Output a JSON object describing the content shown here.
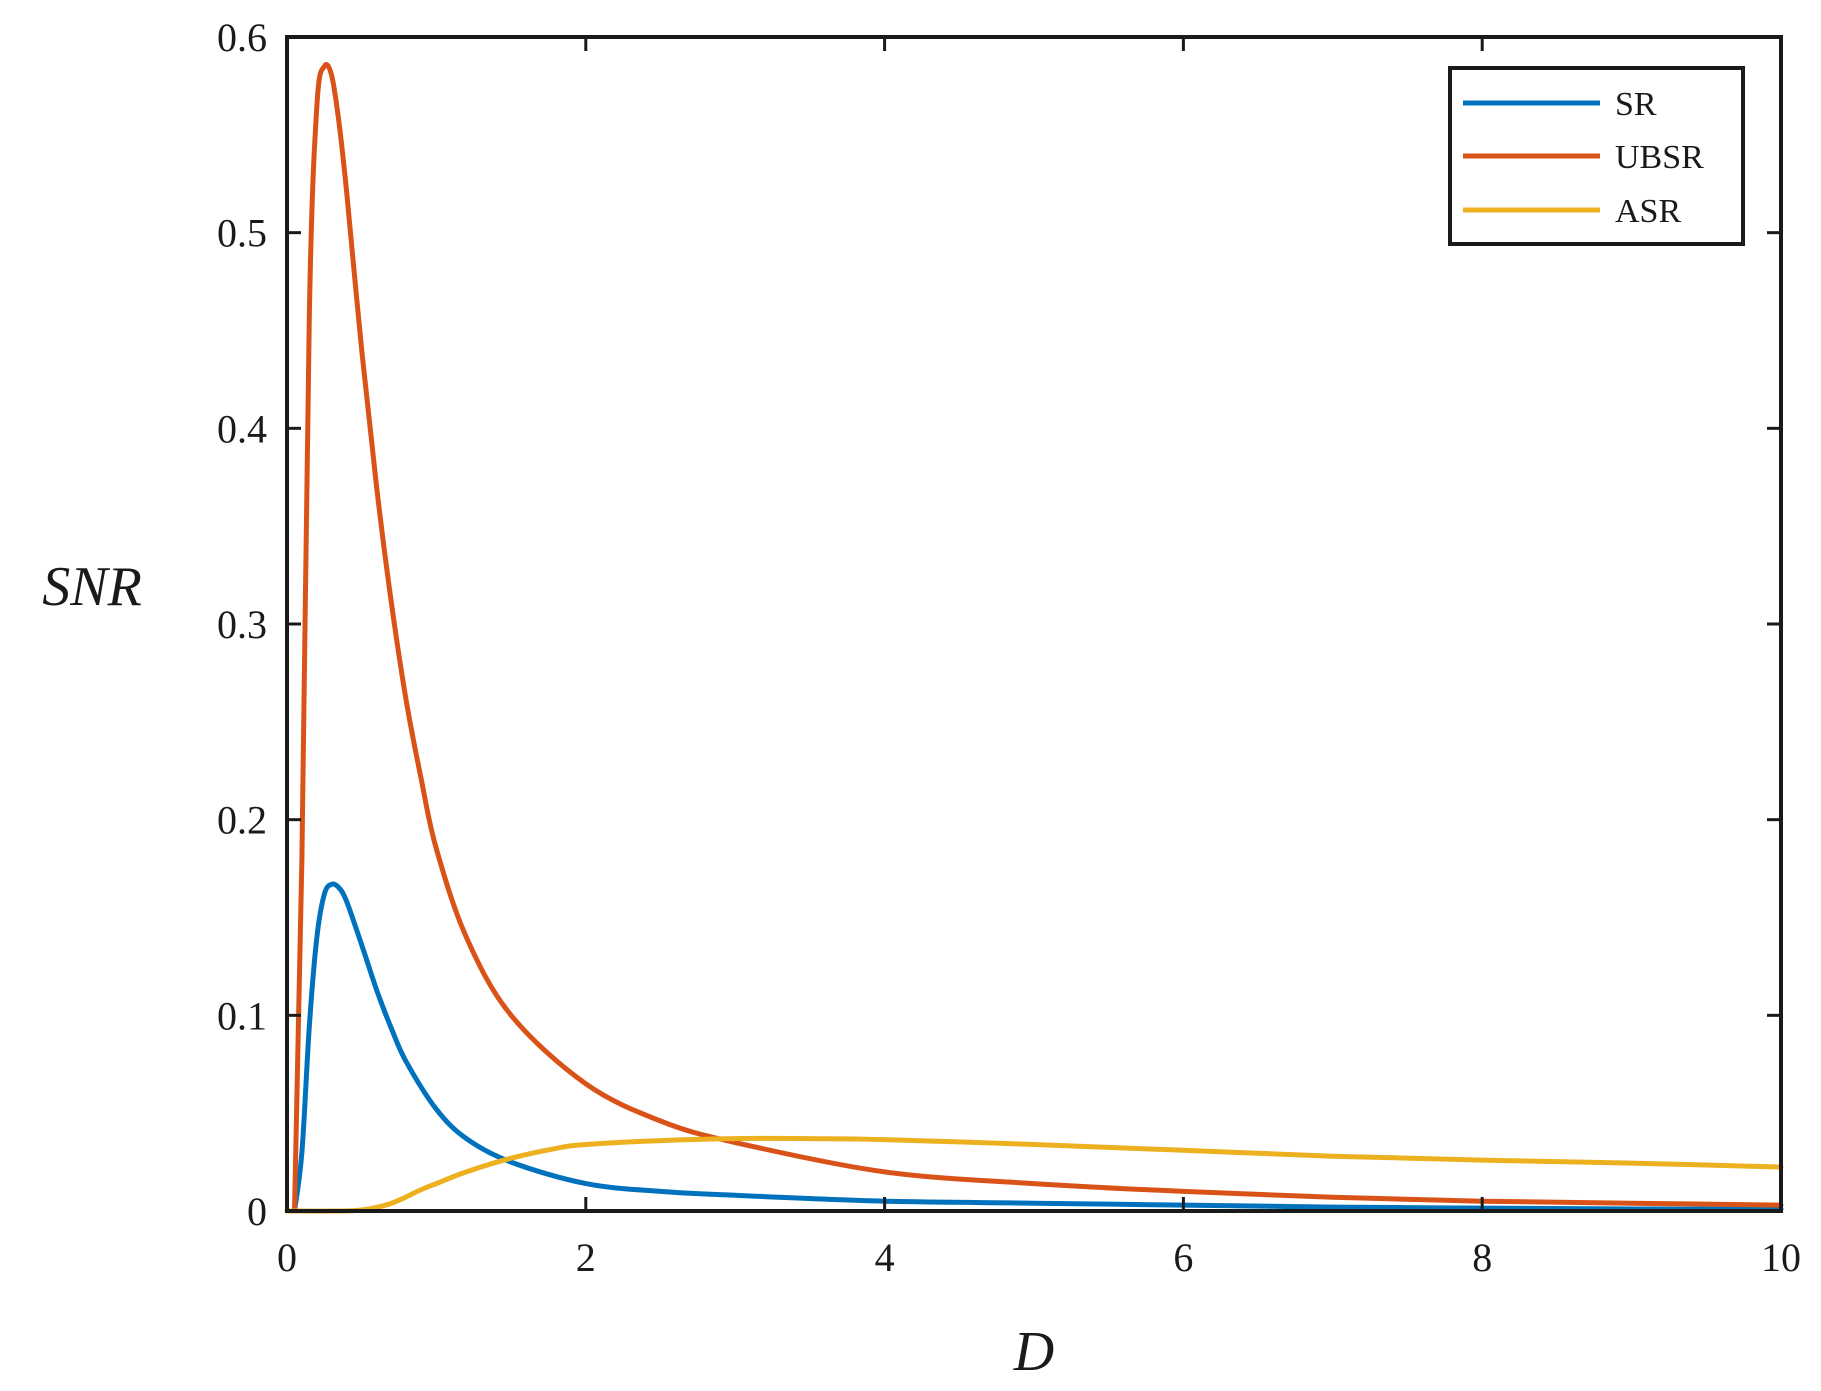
{
  "chart_data": {
    "type": "line",
    "xlabel": "D",
    "ylabel": "SNR",
    "xlim": [
      0,
      10
    ],
    "ylim": [
      0,
      0.6
    ],
    "xticks": [
      0,
      2,
      4,
      6,
      8,
      10
    ],
    "yticks": [
      0,
      0.1,
      0.2,
      0.3,
      0.4,
      0.5,
      0.6
    ],
    "xtick_labels": [
      "0",
      "2",
      "4",
      "6",
      "8",
      "10"
    ],
    "ytick_labels": [
      "0",
      "0.1",
      "0.2",
      "0.3",
      "0.4",
      "0.5",
      "0.6"
    ],
    "grid": false,
    "legend_position": "top-right",
    "series": [
      {
        "name": "SR",
        "color": "#0072BD",
        "x": [
          0.05,
          0.1,
          0.15,
          0.2,
          0.25,
          0.3,
          0.35,
          0.4,
          0.5,
          0.6,
          0.7,
          0.8,
          1.0,
          1.2,
          1.5,
          2.0,
          2.5,
          3.0,
          4.0,
          5.0,
          6.0,
          7.0,
          8.0,
          9.0,
          10.0
        ],
        "y": [
          0.0,
          0.03,
          0.095,
          0.14,
          0.162,
          0.167,
          0.165,
          0.158,
          0.136,
          0.113,
          0.093,
          0.076,
          0.052,
          0.037,
          0.025,
          0.014,
          0.01,
          0.008,
          0.005,
          0.004,
          0.003,
          0.002,
          0.0015,
          0.001,
          0.001
        ]
      },
      {
        "name": "UBSR",
        "color": "#D95319",
        "x": [
          0.05,
          0.1,
          0.15,
          0.2,
          0.25,
          0.3,
          0.35,
          0.4,
          0.5,
          0.6,
          0.7,
          0.8,
          0.9,
          1.0,
          1.2,
          1.5,
          2.0,
          2.5,
          3.0,
          4.0,
          5.0,
          6.0,
          7.0,
          8.0,
          9.0,
          10.0
        ],
        "y": [
          0.0,
          0.18,
          0.46,
          0.565,
          0.585,
          0.58,
          0.555,
          0.52,
          0.44,
          0.37,
          0.31,
          0.26,
          0.22,
          0.185,
          0.14,
          0.1,
          0.065,
          0.046,
          0.035,
          0.02,
          0.014,
          0.01,
          0.007,
          0.005,
          0.004,
          0.003
        ]
      },
      {
        "name": "ASR",
        "color": "#EDB120",
        "x": [
          0.0,
          0.3,
          0.5,
          0.7,
          0.9,
          1.0,
          1.2,
          1.5,
          1.8,
          2.0,
          2.5,
          3.0,
          3.5,
          4.0,
          5.0,
          6.0,
          7.0,
          8.0,
          9.0,
          10.0
        ],
        "y": [
          0.0,
          0.0,
          0.0005,
          0.004,
          0.011,
          0.014,
          0.02,
          0.027,
          0.032,
          0.034,
          0.036,
          0.037,
          0.037,
          0.0365,
          0.034,
          0.031,
          0.028,
          0.026,
          0.0245,
          0.0225
        ]
      }
    ]
  }
}
